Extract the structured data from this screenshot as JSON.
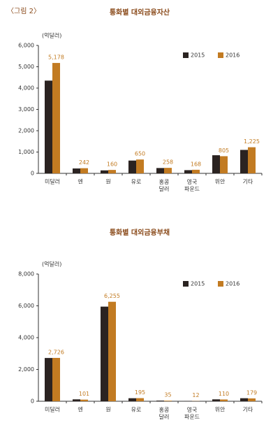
{
  "header": "〈그림 2〉",
  "chart_data": [
    {
      "type": "bar",
      "title": "통화별 대외금융자산",
      "y_label": "(억달러)",
      "categories": [
        "미달러",
        "엔",
        "원",
        "유로",
        "홍콩 달러",
        "영국 파운드",
        "위안",
        "기타"
      ],
      "series": [
        {
          "name": "2015",
          "color": "#2b2321",
          "values": [
            4350,
            230,
            140,
            600,
            250,
            150,
            850,
            1100
          ]
        },
        {
          "name": "2016",
          "color": "#c27b22",
          "values": [
            5178,
            242,
            160,
            650,
            258,
            168,
            805,
            1225
          ],
          "value_labels": [
            "5,178",
            "242",
            "160",
            "650",
            "258",
            "168",
            "805",
            "1,225"
          ]
        }
      ],
      "ylim": [
        0,
        6000
      ],
      "yticks": [
        0,
        {
          "value": 1000,
          "label": "1,000"
        },
        {
          "value": 2000,
          "label": "2,000"
        },
        {
          "value": 3000,
          "label": "3,000"
        },
        {
          "value": 4000,
          "label": "4,000"
        },
        {
          "value": 5000,
          "label": "5,000"
        },
        {
          "value": 6000,
          "label": "6,000"
        }
      ],
      "legend": "top-right"
    },
    {
      "type": "bar",
      "title": "통화별 대외금융부채",
      "y_label": "(억달러)",
      "categories": [
        "미달러",
        "엔",
        "원",
        "유로",
        "홍콩 달러",
        "영국 파운드",
        "위안",
        "기타"
      ],
      "series": [
        {
          "name": "2015",
          "color": "#2b2321",
          "values": [
            2720,
            120,
            5950,
            190,
            40,
            15,
            120,
            190
          ]
        },
        {
          "name": "2016",
          "color": "#c27b22",
          "values": [
            2726,
            101,
            6255,
            195,
            35,
            12,
            110,
            179
          ],
          "value_labels": [
            "2,726",
            "101",
            "6,255",
            "195",
            "35",
            "12",
            "110",
            "179"
          ]
        }
      ],
      "ylim": [
        0,
        8000
      ],
      "yticks": [
        0,
        {
          "value": 2000,
          "label": "2,000"
        },
        {
          "value": 4000,
          "label": "4,000"
        },
        {
          "value": 6000,
          "label": "6,000"
        },
        {
          "value": 8000,
          "label": "8,000"
        }
      ],
      "legend": "top-right"
    }
  ]
}
